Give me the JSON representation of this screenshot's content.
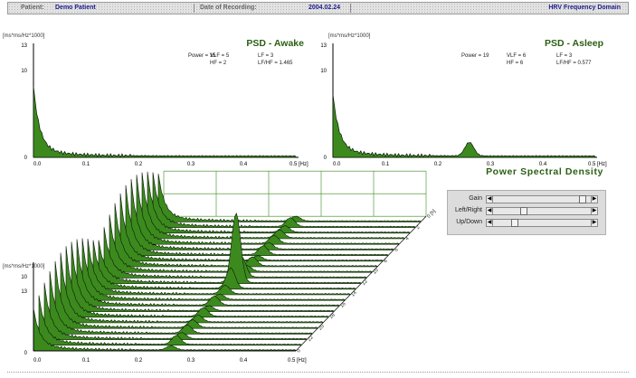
{
  "header": {
    "patient_label": "Patient:",
    "patient_name": "Demo Patient",
    "date_label": "Date of Recording:",
    "date_value": "2004.02.24",
    "view_title": "HRV Frequency Domain"
  },
  "psd_title": "Power Spectral Density",
  "awake": {
    "title": "PSD - Awake",
    "unit": "[ms*ms/Hz*1000]",
    "power": "Power = 15",
    "vlf": "VLF =   5",
    "lf": "LF =   3",
    "hf": "HF =   2",
    "lfhf": "LF/HF = 1.465",
    "y_ticks": [
      "13",
      "10",
      "0"
    ],
    "x_ticks": [
      "0.0",
      "0.1",
      "0.2",
      "0.3",
      "0.4",
      "0.5 [Hz]"
    ]
  },
  "asleep": {
    "title": "PSD - Asleep",
    "unit": "[ms*ms/Hz*1000]",
    "power": "Power = 19",
    "vlf": "VLF =   6",
    "lf": "LF =   3",
    "hf": "HF =   6",
    "lfhf": "LF/HF = 0.577",
    "y_ticks": [
      "13",
      "10",
      "0"
    ],
    "x_ticks": [
      "0.0",
      "0.1",
      "0.2",
      "0.3",
      "0.4",
      "0.5 [Hz]"
    ]
  },
  "spectrum3d": {
    "unit": "[ms*ms/Hz*1000]",
    "y_ticks": [
      "13",
      "10",
      "0"
    ],
    "x_ticks": [
      "0.0",
      "0.1",
      "0.2",
      "0.3",
      "0.4",
      "0.5 [Hz]"
    ],
    "time_ticks": [
      "0 [h]",
      "2",
      "4",
      "6",
      "8",
      "10",
      "12",
      "14",
      "16",
      "18",
      "20",
      "22",
      "0"
    ]
  },
  "controls": {
    "gain_label": "Gain",
    "leftright_label": "Left/Right",
    "updown_label": "Up/Down",
    "gain_value": 0.95,
    "leftright_value": 0.3,
    "updown_value": 0.2
  },
  "colors": {
    "fill": "#3c8a1e",
    "line": "#0a1a06",
    "title": "#2a5f12",
    "header_text": "#1a1a8c",
    "grid": "#3c8a1e"
  }
}
